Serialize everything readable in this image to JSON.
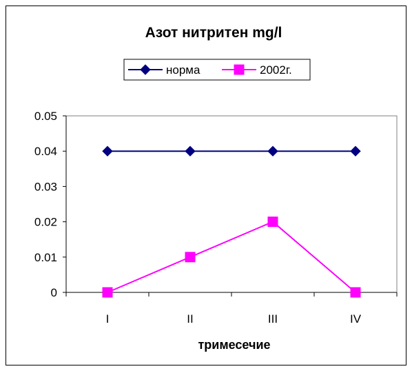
{
  "chart_data": {
    "type": "line",
    "title": "Азот нитритен mg/l",
    "xlabel": "тримесечие",
    "ylabel": "",
    "categories": [
      "I",
      "II",
      "III",
      "IV"
    ],
    "ylim": [
      0,
      0.05
    ],
    "yticks": [
      "0",
      "0.01",
      "0.02",
      "0.03",
      "0.04",
      "0.05"
    ],
    "grid": false,
    "legend": "top",
    "series": [
      {
        "name": "норма",
        "values": [
          0.04,
          0.04,
          0.04,
          0.04
        ],
        "color": "#000080",
        "marker": "diamond"
      },
      {
        "name": "2002г.",
        "values": [
          0,
          0.01,
          0.02,
          0
        ],
        "color": "#FF00FF",
        "marker": "square"
      }
    ]
  }
}
